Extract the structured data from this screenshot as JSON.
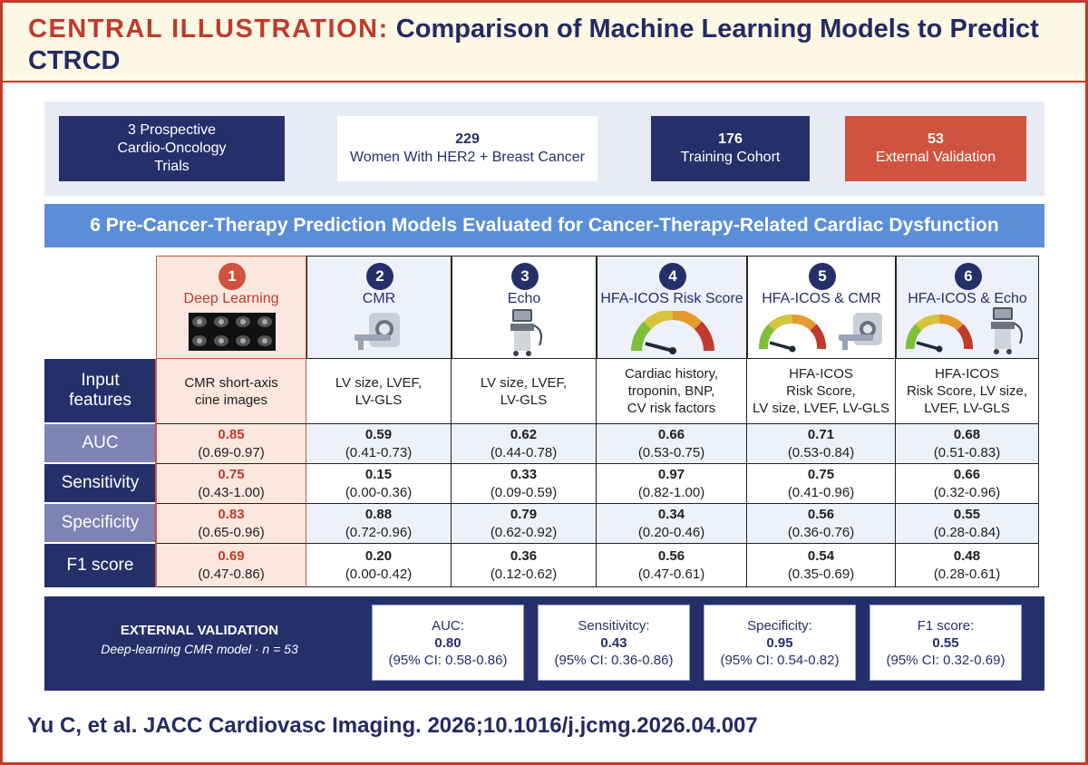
{
  "header": {
    "prefix": "CENTRAL ILLUSTRATION:",
    "title": "Comparison of Machine Learning Models to Predict CTRCD"
  },
  "cohort": {
    "trials": [
      "3 Prospective",
      "Cardio-Oncology",
      "Trials"
    ],
    "women_num": "229",
    "women_label": "Women With HER2 + Breast Cancer",
    "training_num": "176",
    "training_label": "Training Cohort",
    "validation_num": "53",
    "validation_label": "External Validation"
  },
  "banner": "6 Pre-Cancer-Therapy Prediction Models Evaluated for Cancer-Therapy-Related Cardiac Dysfunction",
  "row_labels": {
    "input": [
      "Input",
      "features"
    ],
    "auc": "AUC",
    "sensitivity": "Sensitivity",
    "specificity": "Specificity",
    "f1": "F1 score"
  },
  "models": [
    {
      "number": "1",
      "name": "Deep Learning",
      "icon": "cmr-cine-images",
      "features": [
        "CMR short-axis",
        "cine images"
      ],
      "auc": {
        "value": "0.85",
        "ci": "(0.69-0.97)"
      },
      "sensitivity": {
        "value": "0.75",
        "ci": "(0.43-1.00)"
      },
      "specificity": {
        "value": "0.83",
        "ci": "(0.65-0.96)"
      },
      "f1": {
        "value": "0.69",
        "ci": "(0.47-0.86)"
      }
    },
    {
      "number": "2",
      "name": "CMR",
      "icon": "mri-scanner",
      "features": [
        "LV size, LVEF,",
        "LV-GLS"
      ],
      "auc": {
        "value": "0.59",
        "ci": "(0.41-0.73)"
      },
      "sensitivity": {
        "value": "0.15",
        "ci": "(0.00-0.36)"
      },
      "specificity": {
        "value": "0.88",
        "ci": "(0.72-0.96)"
      },
      "f1": {
        "value": "0.20",
        "ci": "(0.00-0.42)"
      }
    },
    {
      "number": "3",
      "name": "Echo",
      "icon": "echo-machine",
      "features": [
        "LV size, LVEF,",
        "LV-GLS"
      ],
      "auc": {
        "value": "0.62",
        "ci": "(0.44-0.78)"
      },
      "sensitivity": {
        "value": "0.33",
        "ci": "(0.09-0.59)"
      },
      "specificity": {
        "value": "0.79",
        "ci": "(0.62-0.92)"
      },
      "f1": {
        "value": "0.36",
        "ci": "(0.12-0.62)"
      }
    },
    {
      "number": "4",
      "name": "HFA-ICOS Risk Score",
      "icon": "risk-gauge",
      "features": [
        "Cardiac history,",
        "troponin, BNP,",
        "CV risk factors"
      ],
      "auc": {
        "value": "0.66",
        "ci": "(0.53-0.75)"
      },
      "sensitivity": {
        "value": "0.97",
        "ci": "(0.82-1.00)"
      },
      "specificity": {
        "value": "0.34",
        "ci": "(0.20-0.46)"
      },
      "f1": {
        "value": "0.56",
        "ci": "(0.47-0.61)"
      }
    },
    {
      "number": "5",
      "name": "HFA-ICOS & CMR",
      "icon": "gauge-and-mri",
      "features": [
        "HFA-ICOS",
        "Risk Score,",
        "LV size, LVEF, LV-GLS"
      ],
      "auc": {
        "value": "0.71",
        "ci": "(0.53-0.84)"
      },
      "sensitivity": {
        "value": "0.75",
        "ci": "(0.41-0.96)"
      },
      "specificity": {
        "value": "0.56",
        "ci": "(0.36-0.76)"
      },
      "f1": {
        "value": "0.54",
        "ci": "(0.35-0.69)"
      }
    },
    {
      "number": "6",
      "name": "HFA-ICOS & Echo",
      "icon": "gauge-and-echo",
      "features": [
        "HFA-ICOS",
        "Risk Score, LV size,",
        "LVEF, LV-GLS"
      ],
      "auc": {
        "value": "0.68",
        "ci": "(0.51-0.83)"
      },
      "sensitivity": {
        "value": "0.66",
        "ci": "(0.32-0.96)"
      },
      "specificity": {
        "value": "0.55",
        "ci": "(0.28-0.84)"
      },
      "f1": {
        "value": "0.48",
        "ci": "(0.28-0.61)"
      }
    }
  ],
  "external": {
    "title": "EXTERNAL VALIDATION",
    "subtitle": "Deep-learning CMR model · n = 53",
    "metrics": [
      {
        "label": "AUC:",
        "value": "0.80",
        "ci": "(95% CI: 0.58-0.86)"
      },
      {
        "label": "Sensitivitcy:",
        "value": "0.43",
        "ci": "(95% CI: 0.36-0.86)"
      },
      {
        "label": "Specificity:",
        "value": "0.95",
        "ci": "(95% CI: 0.54-0.82)"
      },
      {
        "label": "F1 score:",
        "value": "0.55",
        "ci": "(95% CI: 0.32-0.69)"
      }
    ]
  },
  "citation": "Yu C, et al. JACC Cardiovasc Imaging. 2026;10.1016/j.jcmg.2026.04.007",
  "colors": {
    "navy": "#25306b",
    "accent_red": "#c23a2c",
    "banner_blue": "#5b8ed6",
    "header_bg": "#fdf8e4",
    "deep_learning_bg": "#fbe7de"
  }
}
